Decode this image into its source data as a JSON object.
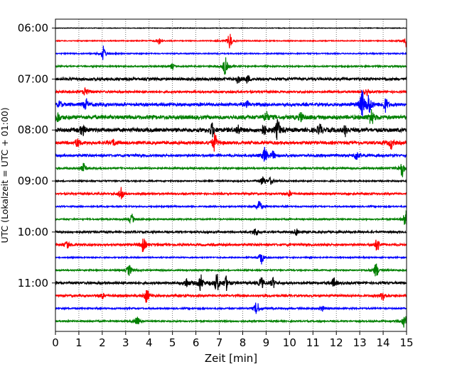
{
  "chart_data": {
    "type": "line",
    "title": "",
    "xlabel": "Zeit  [min]",
    "ylabel": "UTC (Lokalzeit = UTC + 01:00)",
    "xlim": [
      0,
      15
    ],
    "xticks": [
      "0",
      "1",
      "2",
      "3",
      "4",
      "5",
      "6",
      "7",
      "8",
      "9",
      "10",
      "11",
      "12",
      "13",
      "14",
      "15"
    ],
    "yticks": [
      "06:00",
      "07:00",
      "08:00",
      "09:00",
      "10:00",
      "11:00"
    ],
    "grid": "vertical dotted at each minute",
    "trace_colors": [
      "#000000",
      "#ff0000",
      "#0000ff",
      "#008000"
    ],
    "traces": [
      {
        "label": "06:00",
        "color": "#000000",
        "events": [],
        "noise": 0.4
      },
      {
        "label": "06:15",
        "color": "#ff0000",
        "events": [
          [
            4.45,
            4
          ],
          [
            7.45,
            9
          ],
          [
            15,
            8
          ]
        ],
        "noise": 0.6
      },
      {
        "label": "06:30",
        "color": "#0000ff",
        "events": [
          [
            2.05,
            8
          ]
        ],
        "noise": 0.7
      },
      {
        "label": "06:45",
        "color": "#008000",
        "events": [
          [
            7.25,
            10
          ],
          [
            5.0,
            3
          ]
        ],
        "noise": 0.9
      },
      {
        "label": "07:00",
        "color": "#000000",
        "events": [
          [
            7.8,
            4
          ],
          [
            8.2,
            4
          ]
        ],
        "noise": 1.8
      },
      {
        "label": "07:15",
        "color": "#ff0000",
        "events": [
          [
            1.3,
            6
          ],
          [
            13.3,
            3
          ]
        ],
        "noise": 1.4
      },
      {
        "label": "07:30",
        "color": "#0000ff",
        "events": [
          [
            0.2,
            3
          ],
          [
            1.3,
            6
          ],
          [
            13.1,
            14
          ],
          [
            13.4,
            11
          ],
          [
            14.1,
            7
          ],
          [
            8.2,
            3
          ]
        ],
        "noise": 2.0
      },
      {
        "label": "07:45",
        "color": "#008000",
        "events": [
          [
            0.1,
            5
          ],
          [
            13.5,
            9
          ],
          [
            9.0,
            6
          ],
          [
            10.5,
            5
          ]
        ],
        "noise": 2.6
      },
      {
        "label": "08:00",
        "color": "#000000",
        "events": [
          [
            9.5,
            11
          ],
          [
            6.7,
            7
          ],
          [
            1.15,
            6
          ],
          [
            7.8,
            5
          ],
          [
            8.9,
            5
          ],
          [
            11.3,
            6
          ],
          [
            12.4,
            6
          ]
        ],
        "noise": 2.6
      },
      {
        "label": "08:15",
        "color": "#ff0000",
        "events": [
          [
            6.8,
            10
          ],
          [
            0.95,
            5
          ],
          [
            14.35,
            6
          ],
          [
            2.5,
            3
          ]
        ],
        "noise": 2.0
      },
      {
        "label": "08:30",
        "color": "#0000ff",
        "events": [
          [
            8.95,
            9
          ],
          [
            12.85,
            5
          ],
          [
            9.3,
            4
          ]
        ],
        "noise": 1.6
      },
      {
        "label": "08:45",
        "color": "#008000",
        "events": [
          [
            14.8,
            10
          ],
          [
            1.2,
            5
          ]
        ],
        "noise": 1.1
      },
      {
        "label": "09:00",
        "color": "#000000",
        "events": [
          [
            8.85,
            5
          ],
          [
            9.2,
            4
          ]
        ],
        "noise": 0.9
      },
      {
        "label": "09:15",
        "color": "#ff0000",
        "events": [
          [
            2.8,
            8
          ],
          [
            10.0,
            3
          ]
        ],
        "noise": 1.2
      },
      {
        "label": "09:30",
        "color": "#0000ff",
        "events": [
          [
            8.7,
            8
          ]
        ],
        "noise": 0.9
      },
      {
        "label": "09:45",
        "color": "#008000",
        "events": [
          [
            3.25,
            6
          ],
          [
            14.95,
            10
          ]
        ],
        "noise": 0.9
      },
      {
        "label": "10:00",
        "color": "#000000",
        "events": [
          [
            8.55,
            5
          ],
          [
            10.3,
            4
          ]
        ],
        "noise": 1.3
      },
      {
        "label": "10:15",
        "color": "#ff0000",
        "events": [
          [
            3.75,
            8
          ],
          [
            13.75,
            7
          ],
          [
            0.5,
            4
          ]
        ],
        "noise": 1.5
      },
      {
        "label": "10:30",
        "color": "#0000ff",
        "events": [
          [
            8.8,
            7
          ]
        ],
        "noise": 0.8
      },
      {
        "label": "10:45",
        "color": "#008000",
        "events": [
          [
            3.15,
            6
          ],
          [
            13.7,
            8
          ]
        ],
        "noise": 0.9
      },
      {
        "label": "11:00",
        "color": "#000000",
        "events": [
          [
            6.2,
            9
          ],
          [
            6.9,
            10
          ],
          [
            7.3,
            7
          ],
          [
            5.6,
            5
          ],
          [
            8.8,
            6
          ],
          [
            9.3,
            5
          ],
          [
            11.9,
            5
          ]
        ],
        "noise": 1.6
      },
      {
        "label": "11:15",
        "color": "#ff0000",
        "events": [
          [
            3.9,
            8
          ],
          [
            14.0,
            6
          ],
          [
            2.0,
            3
          ]
        ],
        "noise": 1.4
      },
      {
        "label": "11:30",
        "color": "#0000ff",
        "events": [
          [
            8.6,
            8
          ],
          [
            11.4,
            3
          ]
        ],
        "noise": 1.0
      },
      {
        "label": "11:45",
        "color": "#008000",
        "events": [
          [
            14.9,
            9
          ],
          [
            3.5,
            5
          ]
        ],
        "noise": 1.0
      }
    ]
  }
}
